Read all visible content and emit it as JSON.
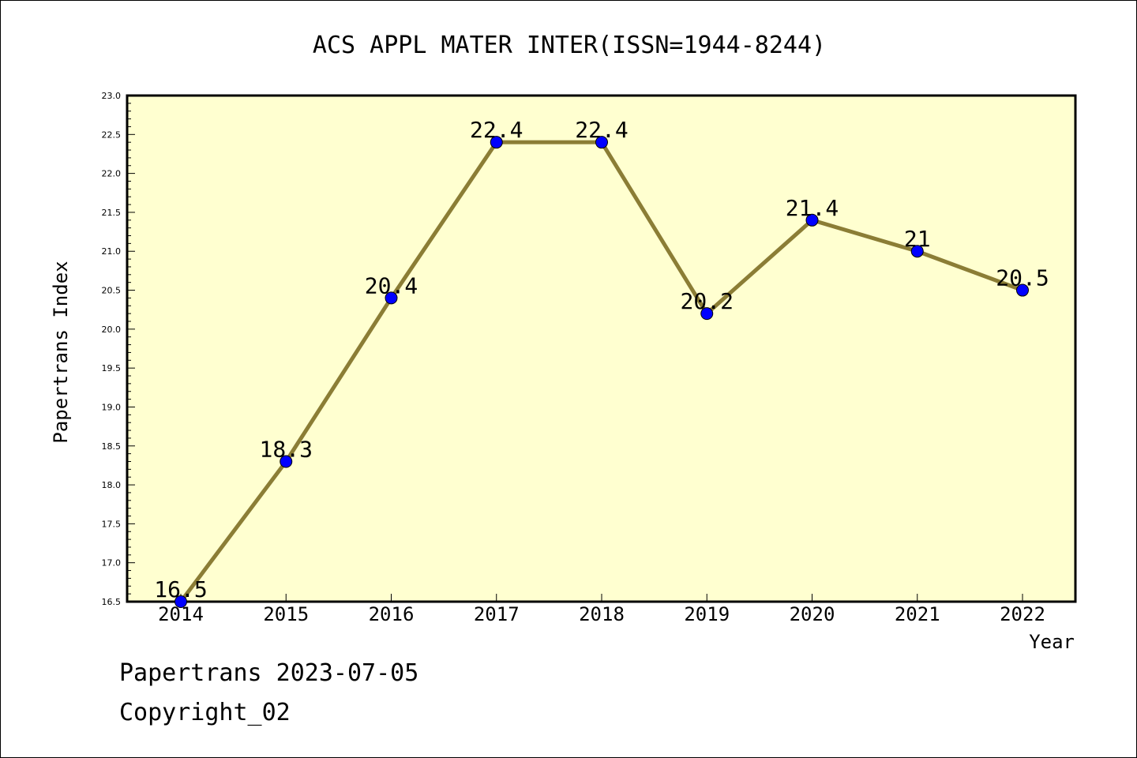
{
  "chart_data": {
    "type": "line",
    "title": "ACS APPL MATER INTER(ISSN=1944-8244)",
    "xlabel": "Year",
    "ylabel": "Papertrans Index",
    "categories": [
      "2014",
      "2015",
      "2016",
      "2017",
      "2018",
      "2019",
      "2020",
      "2021",
      "2022"
    ],
    "values": [
      16.5,
      18.3,
      20.4,
      22.4,
      22.4,
      20.2,
      21.4,
      21,
      20.5
    ],
    "data_labels": [
      "16.5",
      "18.3",
      "20.4",
      "22.4",
      "22.4",
      "20.2",
      "21.4",
      "21",
      "20.5"
    ],
    "ylim": [
      16.5,
      23.0
    ],
    "yticks": [
      "16.5",
      "17.0",
      "17.5",
      "18.0",
      "18.5",
      "19.0",
      "19.5",
      "20.0",
      "20.5",
      "21.0",
      "21.5",
      "22.0",
      "22.5",
      "23.0"
    ],
    "grid": false,
    "legend": "none",
    "colors": {
      "plot_background": "#ffffd0",
      "line": "#8b7d35",
      "marker": "#0000ff"
    }
  },
  "footer": {
    "date_line": "Papertrans 2023-07-05",
    "copyright": "Copyright_02"
  }
}
